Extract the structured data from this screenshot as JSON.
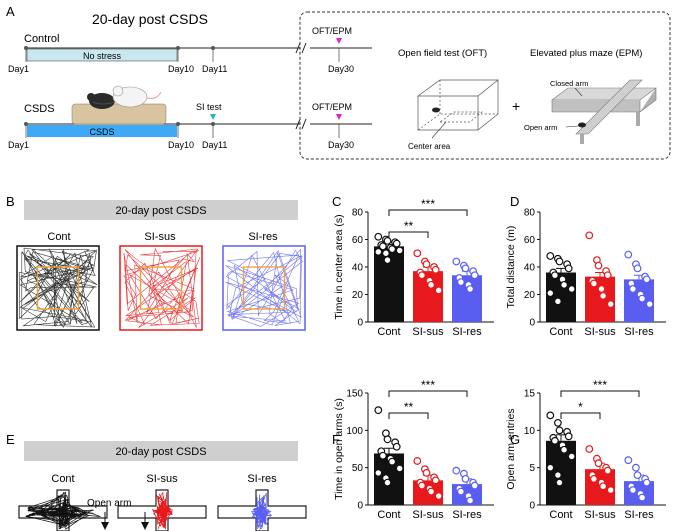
{
  "panel_labels": {
    "a": "A",
    "b": "B",
    "c": "C",
    "d": "D",
    "e": "E",
    "f": "F",
    "g": "G"
  },
  "timeline": {
    "title": "20-day post CSDS",
    "control_label": "Control",
    "csds_label": "CSDS",
    "no_stress_label": "No stress",
    "csds_bar_label": "CSDS",
    "si_test_label": "SI test",
    "ofterm_label_1": "OFT/EPM",
    "ofterm_label_2": "OFT/EPM",
    "day_labels": [
      "Day1",
      "Day10",
      "Day11",
      "Day30"
    ],
    "colors": {
      "no_stress": "#c8e7ee",
      "csds": "#3fa9f5",
      "si_marker": "#22b6b6",
      "oft_marker": "#e020c8"
    }
  },
  "tests": {
    "oft_title": "Open field test (OFT)",
    "epm_title": "Elevated plus maze (EPM)",
    "center_area": "Center area",
    "closed_arm": "Closed arm",
    "open_arm": "Open arm",
    "plus": "+"
  },
  "banner_b": "20-day post CSDS",
  "banner_e": "20-day post CSDS",
  "groups": [
    "Cont",
    "SI-sus",
    "SI-res"
  ],
  "group_colors": [
    "#111111",
    "#e8191c",
    "#5a5ef0"
  ],
  "open_arm_label": "Open arm",
  "chart_data": [
    {
      "id": "C",
      "type": "bar",
      "ylabel": "Time in center area (s)",
      "ylim": [
        0,
        80
      ],
      "yticks": [
        0,
        20,
        40,
        60,
        80
      ],
      "categories": [
        "Cont",
        "SI-sus",
        "SI-res"
      ],
      "values": [
        55,
        37,
        34
      ],
      "points": [
        [
          62,
          60,
          59,
          58,
          57,
          56,
          55,
          54,
          53,
          52,
          51,
          50,
          45
        ],
        [
          50,
          44,
          42,
          40,
          38,
          36,
          34,
          30,
          27,
          23
        ],
        [
          44,
          41,
          39,
          37,
          34,
          32,
          29,
          27,
          24
        ]
      ],
      "sig": [
        {
          "from": 0,
          "to": 1,
          "label": "**"
        },
        {
          "from": 0,
          "to": 2,
          "label": "***"
        }
      ]
    },
    {
      "id": "D",
      "type": "bar",
      "ylabel": "Total distance (m)",
      "ylim": [
        0,
        80
      ],
      "yticks": [
        0,
        20,
        40,
        60,
        80
      ],
      "categories": [
        "Cont",
        "SI-sus",
        "SI-res"
      ],
      "values": [
        36,
        33,
        31
      ],
      "points": [
        [
          48,
          46,
          44,
          42,
          39,
          36,
          34,
          31,
          27,
          24,
          21,
          15
        ],
        [
          63,
          45,
          41,
          37,
          34,
          30,
          28,
          24,
          19,
          13
        ],
        [
          49,
          42,
          39,
          33,
          31,
          28,
          24,
          20,
          17,
          13
        ]
      ],
      "sig": []
    },
    {
      "id": "F",
      "type": "bar",
      "ylabel": "Time in open arms (s)",
      "ylim": [
        0,
        150
      ],
      "yticks": [
        0,
        50,
        100,
        150
      ],
      "categories": [
        "Cont",
        "SI-sus",
        "SI-res"
      ],
      "values": [
        69,
        33,
        28
      ],
      "points": [
        [
          127,
          96,
          88,
          84,
          78,
          72,
          66,
          62,
          58,
          49,
          43,
          36,
          30
        ],
        [
          59,
          48,
          43,
          37,
          33,
          30,
          26,
          22,
          18,
          12
        ],
        [
          46,
          42,
          35,
          30,
          26,
          22,
          18,
          12,
          6
        ]
      ],
      "sig": [
        {
          "from": 0,
          "to": 1,
          "label": "**"
        },
        {
          "from": 0,
          "to": 2,
          "label": "***"
        }
      ]
    },
    {
      "id": "G",
      "type": "bar",
      "ylabel": "Open arm entries",
      "ylim": [
        0,
        15
      ],
      "yticks": [
        0,
        5,
        10,
        15
      ],
      "categories": [
        "Cont",
        "SI-sus",
        "SI-res"
      ],
      "values": [
        8.6,
        4.8,
        3.2
      ],
      "points": [
        [
          12,
          11,
          10,
          9.8,
          9.2,
          9,
          8.6,
          8,
          7.4,
          6.5,
          5,
          4,
          3
        ],
        [
          7.5,
          6.2,
          5.6,
          5,
          4.6,
          4,
          3.5,
          3,
          2.5,
          2
        ],
        [
          6,
          5,
          4,
          3.5,
          3,
          2.5,
          2,
          1.5,
          1
        ]
      ],
      "sig": [
        {
          "from": 0,
          "to": 1,
          "label": "*"
        },
        {
          "from": 0,
          "to": 2,
          "label": "***"
        }
      ]
    }
  ]
}
